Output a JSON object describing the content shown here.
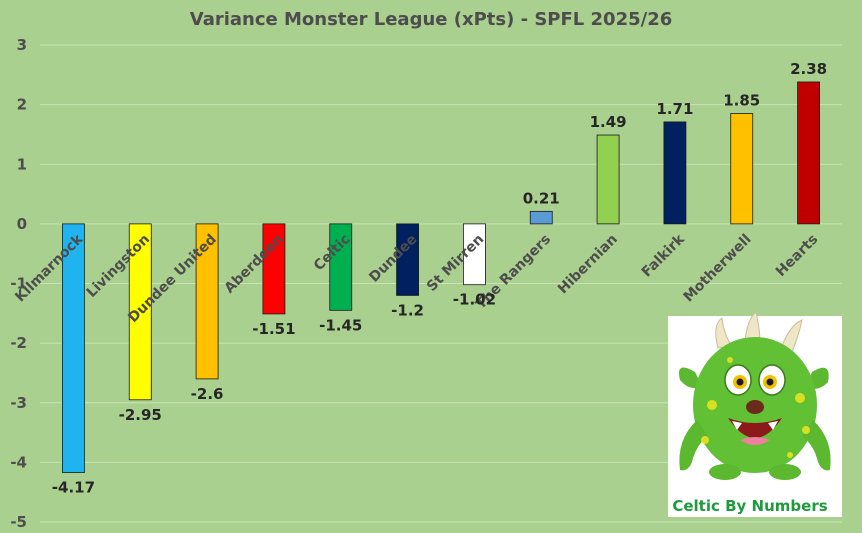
{
  "chart_data": {
    "type": "bar",
    "title": "Variance Monster League (xPts) - SPFL 2025/26",
    "categories": [
      "Kilmarnock",
      "Livingston",
      "Dundee United",
      "Aberdeen",
      "Celtic",
      "Dundee",
      "St Mirren",
      "The Rangers",
      "Hibernian",
      "Falkirk",
      "Motherwell",
      "Hearts"
    ],
    "values": [
      -4.17,
      -2.95,
      -2.6,
      -1.51,
      -1.45,
      -1.2,
      -1.02,
      0.21,
      1.49,
      1.71,
      1.85,
      2.38
    ],
    "value_labels": [
      "-4.17",
      "-2.95",
      "-2.6",
      "-1.51",
      "-1.45",
      "-1.2",
      "-1.02",
      "0.21",
      "1.49",
      "1.71",
      "1.85",
      "2.38"
    ],
    "colors": [
      "#1fb4f0",
      "#ffff00",
      "#ffc000",
      "#ff0000",
      "#00b050",
      "#002060",
      "#ffffff",
      "#5b9bd5",
      "#92d050",
      "#002060",
      "#ffc000",
      "#c00000"
    ],
    "ylim": [
      -5,
      3
    ],
    "yticks": [
      "-5",
      "-4",
      "-3",
      "-2",
      "-1",
      "0",
      "1",
      "2",
      "3"
    ],
    "grid": true,
    "legend": "none",
    "background": "#a9d08e",
    "gridline_color": "#c9e3b5"
  },
  "logo": {
    "caption": "Celtic By Numbers",
    "icon": "green-monster-icon"
  }
}
